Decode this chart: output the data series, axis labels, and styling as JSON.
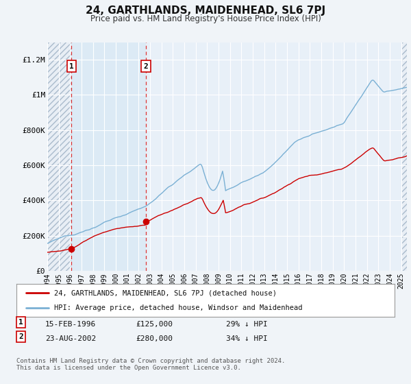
{
  "title": "24, GARTHLANDS, MAIDENHEAD, SL6 7PJ",
  "subtitle": "Price paid vs. HM Land Registry's House Price Index (HPI)",
  "bg_color": "#f0f4fa",
  "plot_bg_color": "#e8f0f8",
  "grid_color": "#ffffff",
  "red_line_color": "#cc0000",
  "blue_line_color": "#7ab0d4",
  "transaction1": {
    "date": "15-FEB-1996",
    "price": 125000,
    "pct": "29%",
    "direction": "↓",
    "label": "1"
  },
  "transaction2": {
    "date": "23-AUG-2002",
    "price": 280000,
    "pct": "34%",
    "direction": "↓",
    "label": "2"
  },
  "vline1_x": 1996.12,
  "vline2_x": 2002.64,
  "marker1_x": 1996.12,
  "marker1_y": 125000,
  "marker2_x": 2002.64,
  "marker2_y": 280000,
  "legend_line1": "24, GARTHLANDS, MAIDENHEAD, SL6 7PJ (detached house)",
  "legend_line2": "HPI: Average price, detached house, Windsor and Maidenhead",
  "footer": "Contains HM Land Registry data © Crown copyright and database right 2024.\nThis data is licensed under the Open Government Licence v3.0.",
  "ylim": [
    0,
    1300000
  ],
  "xlim": [
    1994.0,
    2025.5
  ],
  "yticks": [
    0,
    200000,
    400000,
    600000,
    800000,
    1000000,
    1200000
  ],
  "ytick_labels": [
    "£0",
    "£200K",
    "£400K",
    "£600K",
    "£800K",
    "£1M",
    "£1.2M"
  ]
}
